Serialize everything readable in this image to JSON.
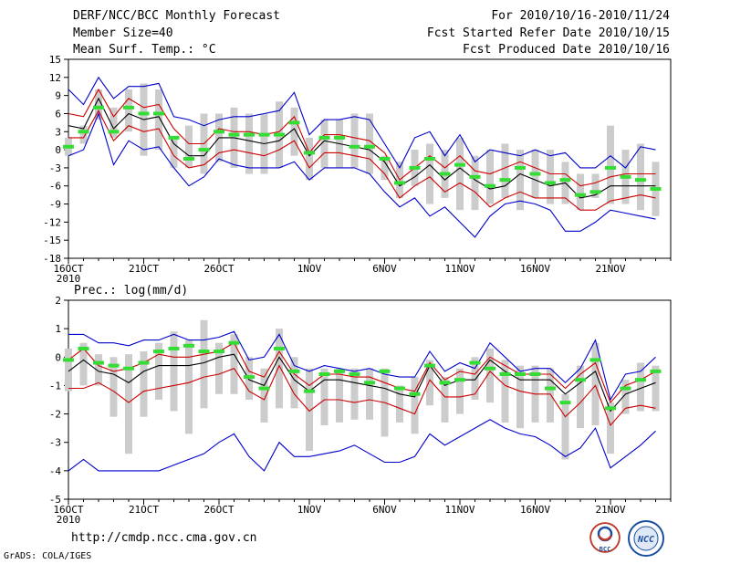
{
  "header": {
    "title": "DERF/NCC/BCC Monthly Forecast",
    "member_size": "Member Size=40",
    "variable": "Mean Surf. Temp.: °C",
    "forecast_period": "For 2010/10/16-2010/11/24",
    "refer_date": "Fcst Started Refer Date 2010/10/15",
    "produced_date": "Fcst Produced Date 2010/10/16"
  },
  "footer": {
    "url": "http://cmdp.ncc.cma.gov.cn",
    "credit": "GrADS: COLA/IGES",
    "logo_bcc": "BCC",
    "logo_ncc": "NCC"
  },
  "colors": {
    "max_min": "#0000cc",
    "mean": "#000000",
    "spread": "#cc0000",
    "observed": "#33dd33",
    "box": "#cccccc"
  },
  "chart_data": [
    {
      "type": "line",
      "title": "Mean Surf. Temp.: °C",
      "ylabel": "°C",
      "ylim": [
        -18,
        15
      ],
      "yticks": [
        -18,
        -15,
        -12,
        -9,
        -6,
        -3,
        0,
        3,
        6,
        9,
        12,
        15
      ],
      "day_range": [
        16,
        56
      ],
      "x_ticks": [
        {
          "day": 16,
          "label": "16OCT",
          "year": "2010"
        },
        {
          "day": 21,
          "label": "21OCT"
        },
        {
          "day": 26,
          "label": "26OCT"
        },
        {
          "day": 32,
          "label": "1NOV"
        },
        {
          "day": 37,
          "label": "6NOV"
        },
        {
          "day": 42,
          "label": "11NOV"
        },
        {
          "day": 47,
          "label": "16NOV"
        },
        {
          "day": 52,
          "label": "21NOV"
        }
      ],
      "x": [
        16,
        17,
        18,
        19,
        20,
        21,
        22,
        23,
        24,
        25,
        26,
        27,
        28,
        29,
        30,
        31,
        32,
        33,
        34,
        35,
        36,
        37,
        38,
        39,
        40,
        41,
        42,
        43,
        44,
        45,
        46,
        47,
        48,
        49,
        50,
        51,
        52,
        53,
        54,
        55
      ],
      "series": [
        {
          "name": "max",
          "values": [
            10,
            7.5,
            12,
            8.5,
            10.5,
            10.5,
            11,
            5.5,
            5,
            4,
            5,
            5.5,
            5.5,
            6,
            6.5,
            9.5,
            2.5,
            5,
            5,
            5.5,
            5,
            1,
            -3,
            2,
            3,
            -1,
            2.5,
            -2,
            0,
            -0.5,
            -1,
            0,
            -1,
            -0.5,
            -3,
            -3,
            -1,
            -3,
            0.5,
            0
          ]
        },
        {
          "name": "spread_upper",
          "values": [
            6,
            5.5,
            10,
            5.5,
            8.5,
            7,
            7.5,
            3.5,
            1,
            1,
            3.5,
            3,
            3,
            2.5,
            3,
            5.5,
            -0.5,
            2.5,
            2.5,
            2,
            1.5,
            -0.5,
            -5,
            -3,
            -1,
            -3,
            -1,
            -3.5,
            -4,
            -3,
            -2,
            -3,
            -4,
            -4,
            -6,
            -5.5,
            -4.5,
            -4,
            -4,
            -4
          ]
        },
        {
          "name": "mean",
          "values": [
            4,
            3.5,
            8.5,
            3.5,
            6,
            5,
            5.5,
            1,
            -1,
            -1,
            2,
            2,
            1.5,
            1,
            1.5,
            3.5,
            -1,
            1.5,
            1,
            0.5,
            0,
            -2,
            -6,
            -4.5,
            -2.5,
            -5,
            -3,
            -5,
            -6.5,
            -6,
            -4,
            -5,
            -6,
            -5.5,
            -8,
            -7.5,
            -6,
            -6,
            -6,
            -6
          ]
        },
        {
          "name": "spread_lower",
          "values": [
            2,
            2,
            6.5,
            1.5,
            4,
            3,
            3.5,
            -1,
            -3,
            -2.5,
            -0.5,
            0,
            -0.5,
            -1,
            0,
            1.5,
            -3,
            -0.5,
            -0.5,
            -1,
            -1.5,
            -4,
            -8,
            -6,
            -4.5,
            -7,
            -5.5,
            -7,
            -9.5,
            -8,
            -7,
            -8,
            -8,
            -8,
            -10,
            -10,
            -8.5,
            -8,
            -7.5,
            -8
          ]
        },
        {
          "name": "min",
          "values": [
            -1,
            0,
            6,
            -2.5,
            1.5,
            0,
            0.5,
            -3,
            -6,
            -4.5,
            -1.5,
            -2.5,
            -3,
            -3,
            -3,
            -2,
            -5,
            -3,
            -3,
            -3,
            -4,
            -7,
            -9.5,
            -8,
            -11,
            -9.5,
            -12,
            -14.5,
            -11,
            -9,
            -8.5,
            -9,
            -10,
            -13.5,
            -13.5,
            -12,
            -10,
            -10.5,
            -11,
            -11.5
          ]
        }
      ],
      "observed": [
        0.5,
        3,
        7,
        3,
        7,
        6,
        6,
        2,
        -1.5,
        0,
        3,
        2.5,
        2.5,
        2.5,
        2.5,
        4.5,
        -0.5,
        2,
        2,
        0.5,
        0.5,
        -1.5,
        -5.5,
        -3,
        -1.5,
        -4,
        -2.5,
        -4.5,
        -6,
        -5,
        -3,
        -4,
        -5.5,
        -5,
        -7.5,
        -7,
        -3,
        -4.5,
        -5,
        -6.5
      ],
      "boxes": [
        [
          -1,
          2
        ],
        [
          1,
          4
        ],
        [
          5,
          10
        ],
        [
          2,
          7
        ],
        [
          3,
          10
        ],
        [
          -1,
          11
        ],
        [
          0,
          10
        ],
        [
          -3,
          2
        ],
        [
          -3,
          4
        ],
        [
          -4,
          6
        ],
        [
          -2,
          6
        ],
        [
          -3,
          7
        ],
        [
          -4,
          6
        ],
        [
          -4,
          6
        ],
        [
          -3,
          8
        ],
        [
          -1,
          7
        ],
        [
          -5,
          2
        ],
        [
          -3,
          5
        ],
        [
          -3,
          5
        ],
        [
          -3,
          6
        ],
        [
          -4,
          6
        ],
        [
          -5,
          -1
        ],
        [
          -8,
          -2
        ],
        [
          -6,
          0
        ],
        [
          -9,
          1
        ],
        [
          -8,
          0
        ],
        [
          -10,
          2
        ],
        [
          -10,
          -1
        ],
        [
          -9,
          0
        ],
        [
          -8,
          1
        ],
        [
          -10,
          0
        ],
        [
          -8,
          0
        ],
        [
          -9,
          0
        ],
        [
          -9,
          -2
        ],
        [
          -10,
          -4
        ],
        [
          -8,
          -4
        ],
        [
          -9,
          4
        ],
        [
          -9,
          0
        ],
        [
          -10,
          1
        ],
        [
          -11,
          -2
        ]
      ]
    },
    {
      "type": "line",
      "title": "Prec.: log(mm/d)",
      "ylabel": "log(mm/d)",
      "ylim": [
        -5,
        2
      ],
      "yticks": [
        -5,
        -4,
        -3,
        -2,
        -1,
        0,
        1,
        2
      ],
      "day_range": [
        16,
        56
      ],
      "x_ticks": [
        {
          "day": 16,
          "label": "16OCT",
          "year": "2010"
        },
        {
          "day": 21,
          "label": "21OCT"
        },
        {
          "day": 26,
          "label": "26OCT"
        },
        {
          "day": 32,
          "label": "1NOV"
        },
        {
          "day": 37,
          "label": "6NOV"
        },
        {
          "day": 42,
          "label": "11NOV"
        },
        {
          "day": 47,
          "label": "16NOV"
        },
        {
          "day": 52,
          "label": "21NOV"
        }
      ],
      "x": [
        16,
        17,
        18,
        19,
        20,
        21,
        22,
        23,
        24,
        25,
        26,
        27,
        28,
        29,
        30,
        31,
        32,
        33,
        34,
        35,
        36,
        37,
        38,
        39,
        40,
        41,
        42,
        43,
        44,
        45,
        46,
        47,
        48,
        49,
        50,
        51,
        52,
        53,
        54,
        55
      ],
      "series": [
        {
          "name": "max",
          "values": [
            0.8,
            0.8,
            0.5,
            0.5,
            0.4,
            0.6,
            0.6,
            0.8,
            0.6,
            0.6,
            0.7,
            0.9,
            -0.1,
            0,
            0.8,
            -0.3,
            -0.5,
            -0.3,
            -0.4,
            -0.5,
            -0.4,
            -0.6,
            -0.7,
            -0.7,
            0.2,
            -0.5,
            -0.2,
            -0.4,
            0.5,
            0,
            -0.5,
            -0.4,
            -0.4,
            -0.9,
            -0.4,
            0.6,
            -1.5,
            -0.6,
            -0.5,
            0
          ]
        },
        {
          "name": "spread_upper",
          "values": [
            -0.1,
            0.3,
            -0.3,
            -0.5,
            -0.4,
            -0.2,
            0.1,
            0,
            0,
            0.1,
            0.2,
            0.5,
            -0.5,
            -0.7,
            0.2,
            -0.6,
            -1.0,
            -0.6,
            -0.6,
            -0.7,
            -0.7,
            -0.9,
            -1.1,
            -1.2,
            -0.2,
            -0.8,
            -0.5,
            -0.6,
            0,
            -0.3,
            -0.6,
            -0.6,
            -0.6,
            -1.1,
            -0.6,
            -0.2,
            -1.6,
            -1.0,
            -0.8,
            -0.5
          ]
        },
        {
          "name": "mean",
          "values": [
            -0.5,
            -0.1,
            -0.5,
            -0.6,
            -0.9,
            -0.5,
            -0.3,
            -0.3,
            -0.3,
            -0.2,
            0,
            0.1,
            -0.8,
            -1.0,
            0,
            -0.8,
            -1.2,
            -0.8,
            -0.8,
            -0.9,
            -1.0,
            -1.1,
            -1.3,
            -1.4,
            -0.3,
            -1.0,
            -0.8,
            -0.8,
            -0.1,
            -0.5,
            -0.8,
            -0.8,
            -0.8,
            -1.3,
            -0.9,
            -0.5,
            -1.9,
            -1.3,
            -1.1,
            -0.9
          ]
        },
        {
          "name": "spread_lower",
          "values": [
            -1.1,
            -1.1,
            -0.9,
            -1.2,
            -1.6,
            -1.2,
            -1.1,
            -1.0,
            -0.9,
            -0.7,
            -0.6,
            -0.4,
            -1.2,
            -1.5,
            -0.3,
            -1.3,
            -1.9,
            -1.5,
            -1.5,
            -1.6,
            -1.5,
            -1.6,
            -1.8,
            -2.0,
            -0.8,
            -1.4,
            -1.4,
            -1.3,
            -0.5,
            -1.0,
            -1.2,
            -1.3,
            -1.3,
            -2.1,
            -1.6,
            -1.0,
            -2.4,
            -1.8,
            -1.7,
            -1.8
          ]
        },
        {
          "name": "min",
          "values": [
            -4,
            -3.6,
            -4,
            -4,
            -4,
            -4,
            -4,
            -3.8,
            -3.6,
            -3.4,
            -3.0,
            -2.7,
            -3.5,
            -4,
            -3.0,
            -3.5,
            -3.5,
            -3.4,
            -3.3,
            -3.1,
            -3.4,
            -3.7,
            -3.7,
            -3.5,
            -2.7,
            -3.1,
            -2.8,
            -2.5,
            -2.2,
            -2.5,
            -2.7,
            -2.8,
            -3.1,
            -3.5,
            -3.2,
            -2.5,
            -3.9,
            -3.5,
            -3.1,
            -2.6
          ]
        }
      ],
      "observed": [
        -0.1,
        0.3,
        -0.2,
        -0.3,
        -0.4,
        -0.2,
        0.2,
        0.3,
        0.4,
        0.2,
        0.2,
        0.5,
        -0.7,
        -1.1,
        0.3,
        -0.5,
        -1.2,
        -0.6,
        -0.5,
        -0.6,
        -0.9,
        -0.5,
        -1.1,
        -1.3,
        -0.3,
        -0.9,
        -0.8,
        -0.2,
        -0.4,
        -0.6,
        -0.6,
        -0.6,
        -1.1,
        -1.6,
        -0.8,
        -0.1,
        -1.8,
        -1.1,
        -0.8,
        -0.5
      ],
      "boxes": [
        [
          -1.2,
          0.3
        ],
        [
          -1.0,
          0.5
        ],
        [
          -1.0,
          0.1
        ],
        [
          -2.1,
          0
        ],
        [
          -3.4,
          0.1
        ],
        [
          -2.1,
          0.2
        ],
        [
          -1.5,
          0.5
        ],
        [
          -1.9,
          0.9
        ],
        [
          -2.7,
          0.6
        ],
        [
          -1.8,
          1.3
        ],
        [
          -1.3,
          0.5
        ],
        [
          -1.3,
          0.8
        ],
        [
          -1.5,
          0
        ],
        [
          -2.3,
          -0.4
        ],
        [
          -1.8,
          1.0
        ],
        [
          -1.8,
          0
        ],
        [
          -3.3,
          -0.4
        ],
        [
          -2.4,
          -0.4
        ],
        [
          -2.3,
          -0.4
        ],
        [
          -2.2,
          -0.4
        ],
        [
          -2.2,
          -0.4
        ],
        [
          -2.8,
          -0.4
        ],
        [
          -2.3,
          -1.0
        ],
        [
          -2.7,
          -0.7
        ],
        [
          -1.7,
          -0.1
        ],
        [
          -2.3,
          -0.7
        ],
        [
          -2.0,
          -0.4
        ],
        [
          -1.5,
          0
        ],
        [
          -1.6,
          0.3
        ],
        [
          -2.3,
          -0.1
        ],
        [
          -2.5,
          -0.3
        ],
        [
          -2.3,
          -0.3
        ],
        [
          -2.3,
          -0.4
        ],
        [
          -3.6,
          -1.3
        ],
        [
          -2.5,
          -0.3
        ],
        [
          -2.4,
          0.5
        ],
        [
          -3.4,
          -1.6
        ],
        [
          -2.0,
          -0.8
        ],
        [
          -1.9,
          -0.2
        ],
        [
          -1.9,
          -0.3
        ]
      ]
    }
  ]
}
